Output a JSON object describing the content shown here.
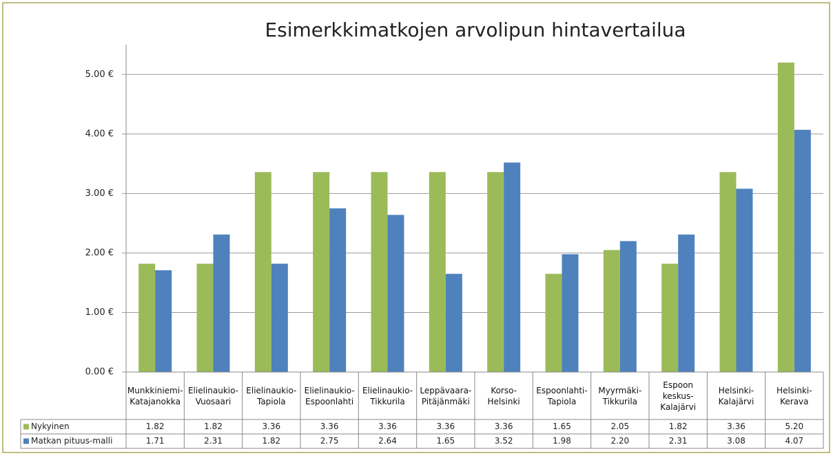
{
  "chart_data": {
    "type": "bar",
    "title": "Esimerkkimatkojen arvolipun hintavertailua",
    "categories": [
      "Munkkiniemi-Katajanokka",
      "Elielinaukio-Vuosaari",
      "Elielinaukio-Tapiola",
      "Elielinaukio-Espoonlahti",
      "Elielinaukio-Tikkurila",
      "Leppävaara-Pitäjänmäki",
      "Korso-Helsinki",
      "Espoonlahti-Tapiola",
      "Myyrmäki-Tikkurila",
      "Espoon keskus-Kalajärvi",
      "Helsinki-Kalajärvi",
      "Helsinki-Kerava"
    ],
    "series": [
      {
        "name": "Nykyinen",
        "color": "#9bbb59",
        "values": [
          1.82,
          1.82,
          3.36,
          3.36,
          3.36,
          3.36,
          3.36,
          1.65,
          2.05,
          1.82,
          3.36,
          5.2
        ],
        "value_labels": [
          "1.82",
          "1.82",
          "3.36",
          "3.36",
          "3.36",
          "3.36",
          "3.36",
          "1.65",
          "2.05",
          "1.82",
          "3.36",
          "5.20"
        ]
      },
      {
        "name": "Matkan pituus-malli",
        "color": "#4f81bd",
        "values": [
          1.71,
          2.31,
          1.82,
          2.75,
          2.64,
          1.65,
          3.52,
          1.98,
          2.2,
          2.31,
          3.08,
          4.07
        ],
        "value_labels": [
          "1.71",
          "2.31",
          "1.82",
          "2.75",
          "2.64",
          "1.65",
          "3.52",
          "1.98",
          "2.20",
          "2.31",
          "3.08",
          "4.07"
        ]
      }
    ],
    "ylim": [
      0,
      5.5
    ],
    "yticks": [
      {
        "value": 0,
        "label": "0.00 €"
      },
      {
        "value": 1,
        "label": "1.00 €"
      },
      {
        "value": 2,
        "label": "2.00 €"
      },
      {
        "value": 3,
        "label": "3.00 €"
      },
      {
        "value": 4,
        "label": "4.00 €"
      },
      {
        "value": 5,
        "label": "5.00 €"
      }
    ],
    "grid": true,
    "legend": "data-table"
  }
}
